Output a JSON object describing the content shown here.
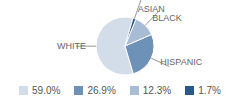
{
  "chart_data": {
    "type": "pie",
    "categories": [
      "WHITE",
      "HISPANIC",
      "BLACK",
      "ASIAN"
    ],
    "values": [
      59.0,
      26.9,
      12.3,
      1.7
    ],
    "value_labels": [
      "59.0%",
      "26.9%",
      "12.3%",
      "1.7%"
    ],
    "colors": [
      "#d3dde9",
      "#6e91b7",
      "#a8bdd5",
      "#2c5887"
    ],
    "legend": "bottom"
  }
}
